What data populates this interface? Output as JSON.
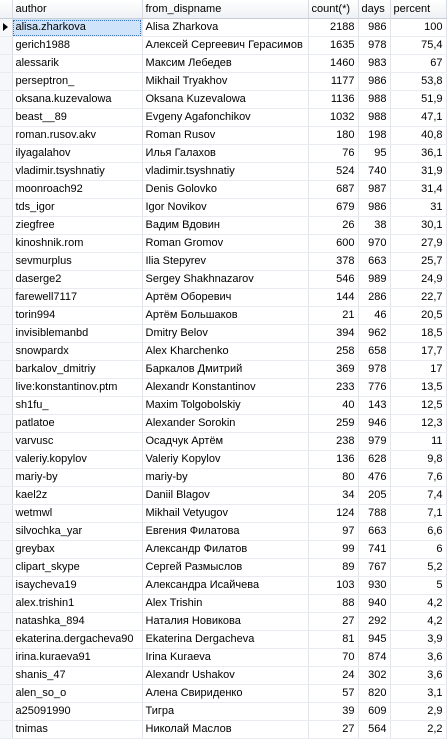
{
  "grid": {
    "columns": [
      "author",
      "from_dispname",
      "count(*)",
      "days",
      "percent"
    ],
    "rows": [
      {
        "author": "alisa.zharkova",
        "dispname": "Alisa Zharkova",
        "count": "2188",
        "days": "986",
        "percent": "100"
      },
      {
        "author": "gerich1988",
        "dispname": "Алексей Сергеевич Герасимов",
        "count": "1635",
        "days": "978",
        "percent": "75,4"
      },
      {
        "author": "alessarik",
        "dispname": "Максим Лебедев",
        "count": "1460",
        "days": "983",
        "percent": "67"
      },
      {
        "author": "perseptron_",
        "dispname": "Mikhail Tryakhov",
        "count": "1177",
        "days": "986",
        "percent": "53,8"
      },
      {
        "author": "oksana.kuzevalowa",
        "dispname": "Oksana Kuzevalowa",
        "count": "1136",
        "days": "988",
        "percent": "51,9"
      },
      {
        "author": "beast__89",
        "dispname": "Evgeny Agafonchikov",
        "count": "1032",
        "days": "988",
        "percent": "47,1"
      },
      {
        "author": "roman.rusov.akv",
        "dispname": "Roman Rusov",
        "count": "180",
        "days": "198",
        "percent": "40,8"
      },
      {
        "author": "ilyagalahov",
        "dispname": "Илья Галахов",
        "count": "76",
        "days": "95",
        "percent": "36,1"
      },
      {
        "author": "vladimir.tsyshnatiy",
        "dispname": "vladimir.tsyshnatiy",
        "count": "524",
        "days": "740",
        "percent": "31,9"
      },
      {
        "author": "moonroach92",
        "dispname": "Denis Golovko",
        "count": "687",
        "days": "987",
        "percent": "31,4"
      },
      {
        "author": "tds_igor",
        "dispname": "Igor Novikov",
        "count": "679",
        "days": "986",
        "percent": "31"
      },
      {
        "author": "ziegfree",
        "dispname": "Вадим Вдовин",
        "count": "26",
        "days": "38",
        "percent": "30,1"
      },
      {
        "author": "kinoshnik.rom",
        "dispname": "Roman Gromov",
        "count": "600",
        "days": "970",
        "percent": "27,9"
      },
      {
        "author": "sevmurplus",
        "dispname": "Ilia Stepyrev",
        "count": "378",
        "days": "663",
        "percent": "25,7"
      },
      {
        "author": "daserge2",
        "dispname": "Sergey Shakhnazarov",
        "count": "546",
        "days": "989",
        "percent": "24,9"
      },
      {
        "author": "farewell7117",
        "dispname": "Артём Оборевич",
        "count": "144",
        "days": "286",
        "percent": "22,7"
      },
      {
        "author": "torin994",
        "dispname": "Артём Большаков",
        "count": "21",
        "days": "46",
        "percent": "20,5"
      },
      {
        "author": "invisiblemanbd",
        "dispname": "Dmitry Belov",
        "count": "394",
        "days": "962",
        "percent": "18,5"
      },
      {
        "author": "snowpardx",
        "dispname": "Alex Kharchenko",
        "count": "258",
        "days": "658",
        "percent": "17,7"
      },
      {
        "author": "barkalov_dmitriy",
        "dispname": "Баркалов Дмитрий",
        "count": "369",
        "days": "978",
        "percent": "17"
      },
      {
        "author": "live:konstantinov.ptm",
        "dispname": "Alexandr Konstantinov",
        "count": "233",
        "days": "776",
        "percent": "13,5"
      },
      {
        "author": "sh1fu_",
        "dispname": "Maxim Tolgobolskiy",
        "count": "40",
        "days": "143",
        "percent": "12,5"
      },
      {
        "author": "patlatoe",
        "dispname": "Alexander Sorokin",
        "count": "259",
        "days": "946",
        "percent": "12,3"
      },
      {
        "author": "varvusc",
        "dispname": "Осадчук Артём",
        "count": "238",
        "days": "979",
        "percent": "11"
      },
      {
        "author": "valeriy.kopylov",
        "dispname": "Valeriy Kopylov",
        "count": "136",
        "days": "628",
        "percent": "9,8"
      },
      {
        "author": "mariy-by",
        "dispname": "mariy-by",
        "count": "80",
        "days": "476",
        "percent": "7,6"
      },
      {
        "author": "kael2z",
        "dispname": "Daniil Blagov",
        "count": "34",
        "days": "205",
        "percent": "7,4"
      },
      {
        "author": "wetmwl",
        "dispname": "Mikhail Vetyugov",
        "count": "124",
        "days": "788",
        "percent": "7,1"
      },
      {
        "author": "silvochka_yar",
        "dispname": "Евгения Филатова",
        "count": "97",
        "days": "663",
        "percent": "6,6"
      },
      {
        "author": "greybax",
        "dispname": "Александр Филатов",
        "count": "99",
        "days": "741",
        "percent": "6"
      },
      {
        "author": "clipart_skype",
        "dispname": "Сергей Размыслов",
        "count": "89",
        "days": "767",
        "percent": "5,2"
      },
      {
        "author": "isaycheva19",
        "dispname": "Александра Исайчева",
        "count": "103",
        "days": "930",
        "percent": "5"
      },
      {
        "author": "alex.trishin1",
        "dispname": "Alex Trishin",
        "count": "88",
        "days": "940",
        "percent": "4,2"
      },
      {
        "author": "natashka_894",
        "dispname": "Наталия Новикова",
        "count": "27",
        "days": "292",
        "percent": "4,2"
      },
      {
        "author": "ekaterina.dergacheva90",
        "dispname": "Ekaterina Dergacheva",
        "count": "81",
        "days": "945",
        "percent": "3,9"
      },
      {
        "author": "irina.kuraeva91",
        "dispname": "Irina Kuraeva",
        "count": "70",
        "days": "874",
        "percent": "3,6"
      },
      {
        "author": "shanis_47",
        "dispname": "Alexandr Ushakov",
        "count": "24",
        "days": "302",
        "percent": "3,6"
      },
      {
        "author": "alen_so_o",
        "dispname": "Алена Свириденко",
        "count": "57",
        "days": "820",
        "percent": "3,1"
      },
      {
        "author": "a25091990",
        "dispname": "Тигра",
        "count": "39",
        "days": "609",
        "percent": "2,9"
      },
      {
        "author": "tnimas",
        "dispname": "Николай Маслов",
        "count": "27",
        "days": "564",
        "percent": "2,2"
      }
    ],
    "selected_row": 0
  }
}
